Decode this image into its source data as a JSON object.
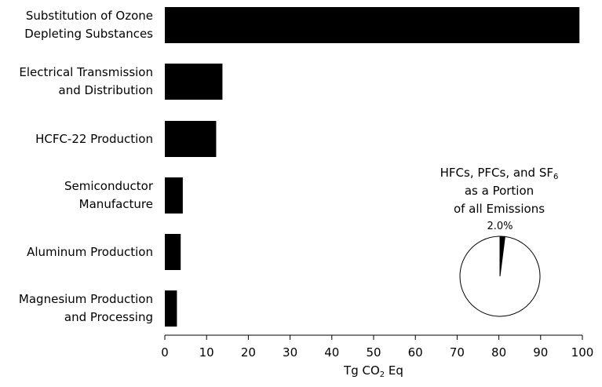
{
  "chart_data": {
    "type": "bar",
    "orientation": "horizontal",
    "categories": [
      [
        "Substitution of Ozone",
        "Depleting Substances"
      ],
      [
        "Electrical Transmission",
        "and Distribution"
      ],
      [
        "HCFC-22 Production"
      ],
      [
        "Semiconductor",
        "Manufacture"
      ],
      [
        "Aluminum Production"
      ],
      [
        "Magnesium Production",
        "and Processing"
      ]
    ],
    "values": [
      99.3,
      13.8,
      12.3,
      4.3,
      3.8,
      2.9
    ],
    "xlabel": {
      "main": "Tg CO",
      "sub": "2",
      "tail": " Eq"
    },
    "xlim": [
      0,
      100
    ],
    "xticks": [
      "0",
      "10",
      "20",
      "30",
      "40",
      "50",
      "60",
      "70",
      "80",
      "90",
      "100"
    ],
    "bar_color": "#000000",
    "grid": false,
    "inset_pie": {
      "title_lines": [
        "HFCs, PFCs, and SF",
        "as a Portion",
        "of all Emissions"
      ],
      "title_sub": "6",
      "values": [
        2.0,
        98.0
      ],
      "slice_label": "2.0%",
      "colors": [
        "#000000",
        "#ffffff"
      ]
    }
  }
}
